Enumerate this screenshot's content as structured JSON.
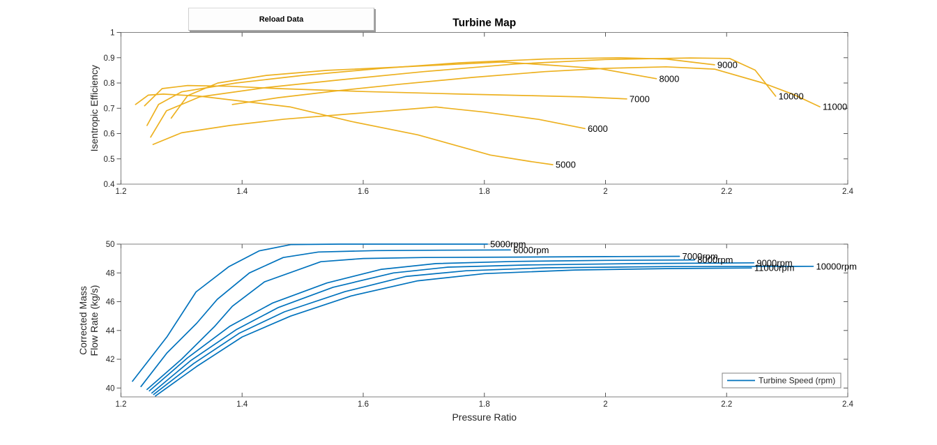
{
  "button": {
    "label": "Reload Data"
  },
  "colors": {
    "efficiency_line": "#EDB120",
    "flow_line": "#0072BD",
    "axis_box": "#808080",
    "tick": "#555555",
    "text": "#262626",
    "title": "#000000",
    "background": "#ffffff"
  },
  "chart_data": [
    {
      "type": "line",
      "title": "Turbine Map",
      "xlabel": "",
      "ylabel": "Isentropic Efficiency",
      "xlim": [
        1.2,
        2.4
      ],
      "ylim": [
        0.4,
        1.0
      ],
      "grid": false,
      "xticks": {
        "values": [
          1.2,
          1.4,
          1.6,
          1.8,
          2.0,
          2.2,
          2.4
        ],
        "labels": [
          "1.2",
          "1.4",
          "1.6",
          "1.8",
          "2",
          "2.2",
          "2.4"
        ]
      },
      "yticks": {
        "values": [
          0.4,
          0.5,
          0.6,
          0.7,
          0.8,
          0.9,
          1.0
        ],
        "labels": [
          "0.4",
          "0.5",
          "0.6",
          "0.7",
          "0.8",
          "0.9",
          "1"
        ]
      },
      "series": [
        {
          "name": "5000",
          "end_label": "5000",
          "points": [
            [
              1.224,
              0.715
            ],
            [
              1.245,
              0.752
            ],
            [
              1.27,
              0.756
            ],
            [
              1.33,
              0.748
            ],
            [
              1.4,
              0.728
            ],
            [
              1.48,
              0.705
            ],
            [
              1.58,
              0.648
            ],
            [
              1.69,
              0.595
            ],
            [
              1.81,
              0.515
            ],
            [
              1.875,
              0.49
            ],
            [
              1.913,
              0.477
            ]
          ]
        },
        {
          "name": "6000",
          "end_label": "6000",
          "points": [
            [
              1.253,
              0.557
            ],
            [
              1.3,
              0.603
            ],
            [
              1.38,
              0.632
            ],
            [
              1.47,
              0.657
            ],
            [
              1.6,
              0.682
            ],
            [
              1.72,
              0.705
            ],
            [
              1.8,
              0.685
            ],
            [
              1.89,
              0.656
            ],
            [
              1.966,
              0.62
            ]
          ]
        },
        {
          "name": "7000",
          "end_label": "7000",
          "points": [
            [
              1.239,
              0.71
            ],
            [
              1.268,
              0.778
            ],
            [
              1.31,
              0.79
            ],
            [
              1.38,
              0.787
            ],
            [
              1.46,
              0.778
            ],
            [
              1.604,
              0.766
            ],
            [
              1.75,
              0.757
            ],
            [
              1.875,
              0.75
            ],
            [
              1.96,
              0.745
            ],
            [
              2.035,
              0.737
            ]
          ]
        },
        {
          "name": "8000",
          "end_label": "8000",
          "points": [
            [
              1.283,
              0.661
            ],
            [
              1.31,
              0.75
            ],
            [
              1.36,
              0.8
            ],
            [
              1.44,
              0.83
            ],
            [
              1.54,
              0.85
            ],
            [
              1.65,
              0.862
            ],
            [
              1.76,
              0.875
            ],
            [
              1.83,
              0.883
            ],
            [
              1.9,
              0.872
            ],
            [
              1.99,
              0.857
            ],
            [
              2.084,
              0.817
            ]
          ]
        },
        {
          "name": "9000",
          "end_label": "9000",
          "points": [
            [
              1.243,
              0.632
            ],
            [
              1.262,
              0.715
            ],
            [
              1.3,
              0.765
            ],
            [
              1.39,
              0.8
            ],
            [
              1.5,
              0.83
            ],
            [
              1.63,
              0.858
            ],
            [
              1.76,
              0.88
            ],
            [
              1.9,
              0.895
            ],
            [
              2.02,
              0.9
            ],
            [
              2.1,
              0.895
            ],
            [
              2.18,
              0.872
            ]
          ]
        },
        {
          "name": "10000",
          "end_label": "10000",
          "points": [
            [
              1.249,
              0.586
            ],
            [
              1.275,
              0.69
            ],
            [
              1.33,
              0.745
            ],
            [
              1.44,
              0.782
            ],
            [
              1.56,
              0.812
            ],
            [
              1.7,
              0.845
            ],
            [
              1.85,
              0.875
            ],
            [
              2.0,
              0.893
            ],
            [
              2.14,
              0.899
            ],
            [
              2.205,
              0.897
            ],
            [
              2.247,
              0.851
            ],
            [
              2.281,
              0.748
            ]
          ]
        },
        {
          "name": "11000",
          "end_label": "11000",
          "points": [
            [
              1.384,
              0.715
            ],
            [
              1.46,
              0.742
            ],
            [
              1.56,
              0.77
            ],
            [
              1.66,
              0.795
            ],
            [
              1.78,
              0.822
            ],
            [
              1.9,
              0.845
            ],
            [
              2.0,
              0.858
            ],
            [
              2.1,
              0.864
            ],
            [
              2.18,
              0.855
            ],
            [
              2.26,
              0.8
            ],
            [
              2.31,
              0.755
            ],
            [
              2.354,
              0.706
            ]
          ]
        }
      ]
    },
    {
      "type": "line",
      "title": "",
      "xlabel": "Pressure Ratio",
      "ylabel": [
        "Corrected Mass",
        "Flow Rate (kg/s)"
      ],
      "xlim": [
        1.2,
        2.4
      ],
      "ylim": [
        39.385,
        50
      ],
      "grid": false,
      "legend": {
        "label": "Turbine Speed (rpm)",
        "position": "southeast"
      },
      "xticks": {
        "values": [
          1.2,
          1.4,
          1.6,
          1.8,
          2.0,
          2.2,
          2.4
        ],
        "labels": [
          "1.2",
          "1.4",
          "1.6",
          "1.8",
          "2",
          "2.2",
          "2.4"
        ]
      },
      "yticks": {
        "values": [
          40,
          42,
          44,
          46,
          48,
          50
        ],
        "labels": [
          "40",
          "42",
          "44",
          "46",
          "48",
          "50"
        ]
      },
      "series": [
        {
          "name": "5000rpm",
          "end_label": "5000rpm",
          "points": [
            [
              1.219,
              40.47
            ],
            [
              1.276,
              43.56
            ],
            [
              1.324,
              46.68
            ],
            [
              1.378,
              48.43
            ],
            [
              1.428,
              49.53
            ],
            [
              1.481,
              49.97
            ],
            [
              1.56,
              50.0
            ],
            [
              1.7,
              50.0
            ],
            [
              1.805,
              50.0
            ]
          ]
        },
        {
          "name": "6000rpm",
          "end_label": "6000rpm",
          "points": [
            [
              1.233,
              40.1
            ],
            [
              1.276,
              42.44
            ],
            [
              1.325,
              44.5
            ],
            [
              1.359,
              46.16
            ],
            [
              1.412,
              48.0
            ],
            [
              1.468,
              49.07
            ],
            [
              1.526,
              49.45
            ],
            [
              1.62,
              49.55
            ],
            [
              1.73,
              49.58
            ],
            [
              1.843,
              49.6
            ]
          ]
        },
        {
          "name": "7000rpm",
          "end_label": "7000rpm",
          "points": [
            [
              1.243,
              39.9
            ],
            [
              1.3,
              42.0
            ],
            [
              1.355,
              44.3
            ],
            [
              1.384,
              45.68
            ],
            [
              1.437,
              47.38
            ],
            [
              1.53,
              48.78
            ],
            [
              1.6,
              49.0
            ],
            [
              1.7,
              49.07
            ],
            [
              1.85,
              49.1
            ],
            [
              2.0,
              49.13
            ],
            [
              2.122,
              49.15
            ]
          ]
        },
        {
          "name": "8000rpm",
          "end_label": "8000rpm",
          "points": [
            [
              1.247,
              39.8
            ],
            [
              1.31,
              42.1
            ],
            [
              1.38,
              44.3
            ],
            [
              1.45,
              45.9
            ],
            [
              1.54,
              47.3
            ],
            [
              1.63,
              48.25
            ],
            [
              1.72,
              48.65
            ],
            [
              1.85,
              48.8
            ],
            [
              2.0,
              48.87
            ],
            [
              2.147,
              48.9
            ]
          ]
        },
        {
          "name": "9000rpm",
          "end_label": "9000rpm",
          "points": [
            [
              1.251,
              39.65
            ],
            [
              1.315,
              41.9
            ],
            [
              1.39,
              44.05
            ],
            [
              1.46,
              45.6
            ],
            [
              1.55,
              47.0
            ],
            [
              1.65,
              48.0
            ],
            [
              1.74,
              48.4
            ],
            [
              1.87,
              48.55
            ],
            [
              2.05,
              48.65
            ],
            [
              2.245,
              48.7
            ]
          ]
        },
        {
          "name": "10000rpm",
          "end_label": "10000rpm",
          "points": [
            [
              1.254,
              39.55
            ],
            [
              1.32,
              41.7
            ],
            [
              1.395,
              43.8
            ],
            [
              1.47,
              45.3
            ],
            [
              1.57,
              46.7
            ],
            [
              1.67,
              47.75
            ],
            [
              1.77,
              48.15
            ],
            [
              1.9,
              48.35
            ],
            [
              2.1,
              48.44
            ],
            [
              2.343,
              48.46
            ]
          ]
        },
        {
          "name": "11000rpm",
          "end_label": "11000rpm",
          "points": [
            [
              1.257,
              39.45
            ],
            [
              1.325,
              41.5
            ],
            [
              1.4,
              43.55
            ],
            [
              1.48,
              45.0
            ],
            [
              1.58,
              46.4
            ],
            [
              1.69,
              47.45
            ],
            [
              1.8,
              47.95
            ],
            [
              1.95,
              48.2
            ],
            [
              2.1,
              48.3
            ],
            [
              2.241,
              48.34
            ]
          ]
        }
      ]
    }
  ]
}
